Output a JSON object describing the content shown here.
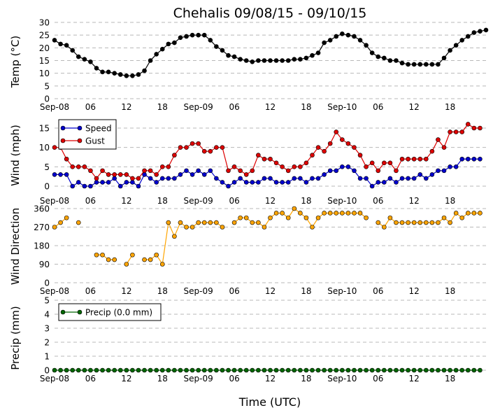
{
  "chart_data": {
    "type": "line",
    "title": "Chehalis 09/08/15 - 09/10/15",
    "xlabel": "Time (UTC)",
    "x_ticks": [
      "Sep-08",
      "06",
      "12",
      "18",
      "Sep-09",
      "06",
      "12",
      "18",
      "Sep-10",
      "06",
      "12",
      "18"
    ],
    "x_range_hours": [
      0,
      72
    ],
    "panels": [
      {
        "ylabel": "Temp (°C)",
        "ylim": [
          0,
          30
        ],
        "yticks": [
          "0",
          "5",
          "10",
          "15",
          "20",
          "25",
          "30"
        ],
        "grid": true,
        "legend": null,
        "series": [
          {
            "color": "#000000",
            "values": [
              23,
              21.5,
              21,
              19,
              16.5,
              15.5,
              14.5,
              12,
              10.5,
              10.5,
              10,
              9.5,
              9,
              9,
              9.5,
              11,
              15,
              17.5,
              19.5,
              21.5,
              22,
              24,
              24.5,
              25,
              25,
              25,
              23,
              20.5,
              19,
              17,
              16.5,
              15.5,
              15,
              14.5,
              15,
              15,
              15,
              15,
              15,
              15,
              15.5,
              15.5,
              16,
              17,
              18,
              22,
              23,
              24.5,
              25.5,
              25,
              24.5,
              23,
              21,
              18,
              16.5,
              16,
              15,
              15,
              14,
              13.5,
              13.5,
              13.5,
              13.5,
              13.5,
              13.5,
              16,
              19,
              21,
              23,
              24.5,
              26,
              26.5,
              27
            ]
          }
        ]
      },
      {
        "ylabel": "Wind (mph)",
        "ylim": [
          -1,
          18.5
        ],
        "yticks": [
          "0",
          "5",
          "10",
          "15"
        ],
        "grid": true,
        "legend": "top-left",
        "series": [
          {
            "name": "Speed",
            "color": "#0000cc",
            "values": [
              3,
              3,
              3,
              0,
              1,
              0,
              0,
              1,
              1,
              1,
              2,
              0,
              1,
              1,
              0,
              3,
              2,
              1,
              2,
              2,
              2,
              3,
              4,
              3,
              4,
              3,
              4,
              2,
              1,
              0,
              1,
              2,
              1,
              1,
              1,
              2,
              2,
              1,
              1,
              1,
              2,
              2,
              1,
              2,
              2,
              3,
              4,
              4,
              5,
              5,
              4,
              2,
              2,
              0,
              1,
              1,
              2,
              1,
              2,
              2,
              2,
              3,
              2,
              3,
              4,
              4,
              5,
              5,
              7,
              7,
              7,
              7
            ]
          },
          {
            "name": "Gust",
            "color": "#dd0000",
            "values": [
              10,
              10,
              7,
              5,
              5,
              5,
              4,
              2,
              4,
              3,
              3,
              3,
              3,
              2,
              2,
              4,
              4,
              3,
              5,
              5,
              8,
              10,
              10,
              11,
              11,
              9,
              9,
              10,
              10,
              4,
              5,
              4,
              3,
              4,
              8,
              7,
              7,
              6,
              5,
              4,
              5,
              5,
              6,
              8,
              10,
              9,
              11,
              14,
              12,
              11,
              10,
              8,
              5,
              6,
              4,
              6,
              6,
              4,
              7,
              7,
              7,
              7,
              7,
              9,
              12,
              10,
              14,
              14,
              14,
              16,
              15,
              15
            ]
          }
        ]
      },
      {
        "ylabel": "Wind Direction",
        "ylim": [
          0,
          365
        ],
        "yticks": [
          "0",
          "90",
          "180",
          "270",
          "360"
        ],
        "grid": true,
        "legend": null,
        "series": [
          {
            "color": "#ffa500",
            "values": [
              270,
              292,
              315,
              null,
              292,
              null,
              null,
              135,
              135,
              112,
              112,
              null,
              90,
              135,
              null,
              112,
              112,
              135,
              90,
              292,
              225,
              292,
              270,
              270,
              292,
              292,
              292,
              292,
              270,
              null,
              292,
              315,
              315,
              292,
              292,
              270,
              315,
              338,
              338,
              315,
              360,
              338,
              315,
              270,
              315,
              338,
              338,
              338,
              338,
              338,
              338,
              338,
              315,
              null,
              292,
              270,
              315,
              292,
              292,
              292,
              292,
              292,
              292,
              292,
              292,
              315,
              292,
              338,
              315,
              338,
              338,
              338
            ]
          }
        ]
      },
      {
        "ylabel": "Precip (mm)",
        "ylim": [
          0,
          5
        ],
        "yticks": [
          "0",
          "1",
          "2",
          "3",
          "4",
          "5"
        ],
        "grid": true,
        "legend": "top-left",
        "series": [
          {
            "name": "Precip (0.0 mm)",
            "color": "#006600",
            "values": [
              0,
              0,
              0,
              0,
              0,
              0,
              0,
              0,
              0,
              0,
              0,
              0,
              0,
              0,
              0,
              0,
              0,
              0,
              0,
              0,
              0,
              0,
              0,
              0,
              0,
              0,
              0,
              0,
              0,
              0,
              0,
              0,
              0,
              0,
              0,
              0,
              0,
              0,
              0,
              0,
              0,
              0,
              0,
              0,
              0,
              0,
              0,
              0,
              0,
              0,
              0,
              0,
              0,
              0,
              0,
              0,
              0,
              0,
              0,
              0,
              0,
              0,
              0,
              0,
              0,
              0,
              0,
              0,
              0,
              0,
              0,
              0
            ]
          }
        ]
      }
    ]
  }
}
